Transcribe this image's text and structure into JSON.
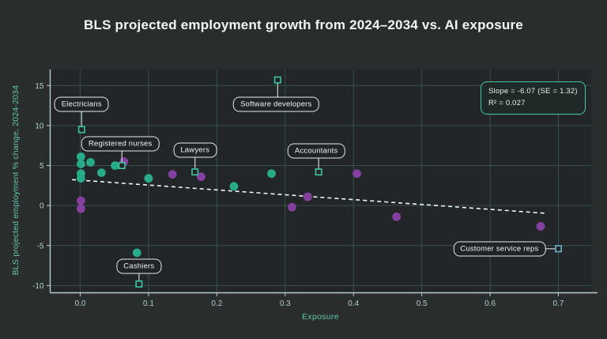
{
  "page": {
    "title": "BLS projected employment growth from 2024–2034 vs. AI exposure"
  },
  "stats_box": {
    "line1": "Slope = -6.07 (SE = 1.32)",
    "line2": "R² = 0.027"
  },
  "colors": {
    "background": "#2a2d2e",
    "plot_background": "#222628",
    "gridline": "#37514a",
    "axis_line": "#b7cdc8",
    "tick_label": "#b5cdc7",
    "axis_title": "#64c3a7",
    "teal_series": "#27ab88",
    "purple_series": "#83409f",
    "trend_line": "#f2f5f4",
    "labeled_marker": "#3fc3a2",
    "stats_border": "#49c6a3",
    "label_box_border": "#e4e9e8",
    "title_text": "#f3f6f5"
  },
  "chart_data": {
    "type": "scatter",
    "title": "BLS projected employment growth from 2024–2034 vs. AI exposure",
    "xlabel": "Exposure",
    "ylabel": "BLS projected employment % change, 2024-2034",
    "xlim": [
      -0.044,
      0.748
    ],
    "ylim": [
      -10.9,
      17.0
    ],
    "xticks": [
      0.0,
      0.1,
      0.2,
      0.3,
      0.4,
      0.5,
      0.6,
      0.7
    ],
    "yticks": [
      -10,
      -5,
      0,
      5,
      10,
      15
    ],
    "grid": true,
    "legend_position": "none",
    "series": [
      {
        "name": "teal-occupations",
        "color": "#27ab88",
        "marker": "circle",
        "points": [
          [
            0.001,
            6.1
          ],
          [
            0.001,
            5.2
          ],
          [
            0.015,
            5.4
          ],
          [
            0.001,
            4.0
          ],
          [
            0.001,
            3.4
          ],
          [
            0.031,
            4.1
          ],
          [
            0.051,
            5.0
          ],
          [
            0.1,
            3.4
          ],
          [
            0.225,
            2.4
          ],
          [
            0.28,
            4.0
          ],
          [
            0.083,
            -5.9
          ]
        ]
      },
      {
        "name": "purple-occupations",
        "color": "#83409f",
        "marker": "circle",
        "points": [
          [
            0.064,
            5.5
          ],
          [
            0.135,
            3.9
          ],
          [
            0.177,
            3.6
          ],
          [
            0.001,
            0.6
          ],
          [
            0.001,
            -0.4
          ],
          [
            0.31,
            -0.2
          ],
          [
            0.333,
            1.1
          ],
          [
            0.405,
            4.0
          ],
          [
            0.463,
            -1.4
          ],
          [
            0.674,
            -2.6
          ]
        ]
      }
    ],
    "labeled_points": [
      {
        "label": "Electricians",
        "x": 0.002,
        "y": 9.5,
        "marker_color": "#3fc3a2",
        "side": "above",
        "gap": 32,
        "shift_x": 0
      },
      {
        "label": "Registered nurses",
        "x": 0.061,
        "y": 5.0,
        "marker_color": "#3fc3a2",
        "side": "above",
        "gap": 28,
        "shift_x": -2
      },
      {
        "label": "Lawyers",
        "x": 0.168,
        "y": 4.2,
        "marker_color": "#3fc3a2",
        "side": "above",
        "gap": 28,
        "shift_x": 0
      },
      {
        "label": "Software developers",
        "x": 0.289,
        "y": 15.7,
        "marker_color": "#3fc3a2",
        "side": "below",
        "gap": 31,
        "shift_x": -2
      },
      {
        "label": "Accountants",
        "x": 0.349,
        "y": 4.2,
        "marker_color": "#3fc3a2",
        "side": "above",
        "gap": 27,
        "shift_x": -3
      },
      {
        "label": "Cashiers",
        "x": 0.086,
        "y": -9.8,
        "marker_color": "#3fc3a2",
        "side": "above",
        "gap": 22,
        "shift_x": 0
      },
      {
        "label": "Customer service reps",
        "x": 0.7,
        "y": -5.4,
        "marker_color": "#6fb0c9",
        "side": "left",
        "gap": 18,
        "shift_x": 0
      }
    ],
    "trend_line": {
      "slope": -6.07,
      "intercept": 3.17,
      "x_start": -0.012,
      "x_end": 0.684,
      "style": "dashed"
    },
    "annotation": {
      "slope_text": "Slope = -6.07 (SE = 1.32)",
      "r2_text": "R² = 0.027"
    }
  }
}
